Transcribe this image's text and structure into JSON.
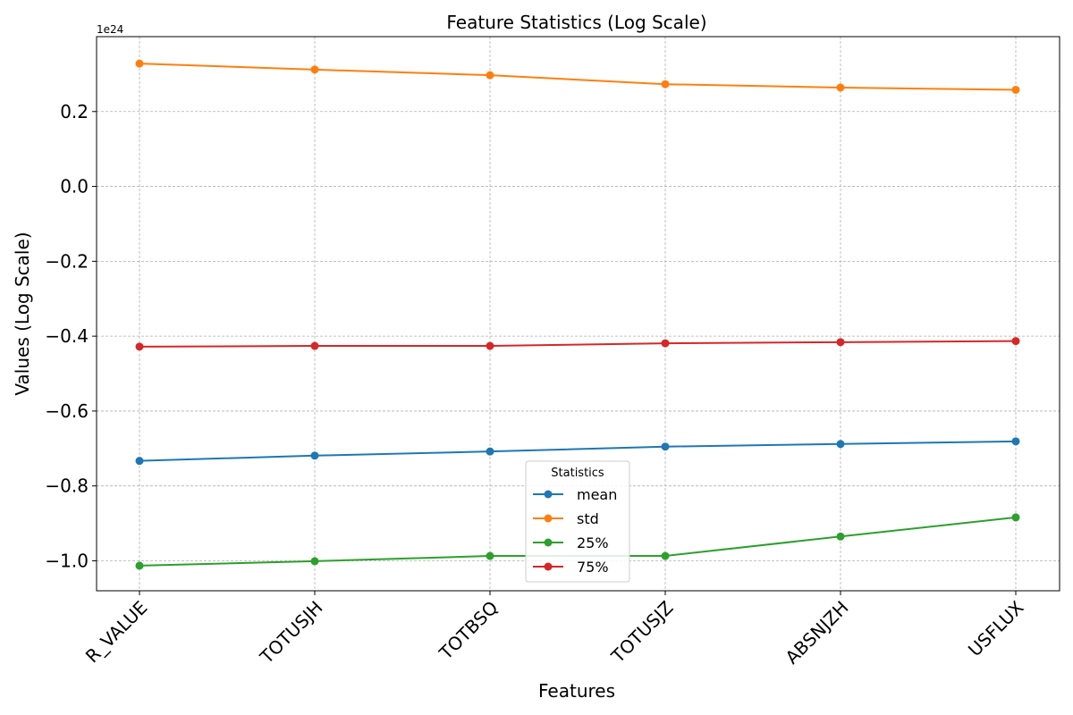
{
  "chart_data": {
    "type": "line",
    "title": "Feature Statistics (Log Scale)",
    "xlabel": "Features",
    "ylabel": "Values (Log Scale)",
    "y_offset_text": "1e24",
    "categories": [
      "R_VALUE",
      "TOTUSJH",
      "TOTBSQ",
      "TOTUSJZ",
      "ABSNJZH",
      "USFLUX"
    ],
    "ylim": [
      -1.08,
      0.4
    ],
    "yticks": [
      -1.0,
      -0.8,
      -0.6,
      -0.4,
      -0.2,
      0.0,
      0.2
    ],
    "ytick_labels": [
      "−1.0",
      "−0.8",
      "−0.6",
      "−0.4",
      "−0.2",
      "0.0",
      "0.2"
    ],
    "grid": true,
    "legend": {
      "title": "Statistics",
      "placement": "lower-center"
    },
    "series": [
      {
        "name": "mean",
        "color": "#1f77b4",
        "values": [
          -0.733,
          -0.719,
          -0.708,
          -0.695,
          -0.688,
          -0.681
        ]
      },
      {
        "name": "std",
        "color": "#ff7f0e",
        "values": [
          0.328,
          0.312,
          0.297,
          0.273,
          0.264,
          0.258
        ]
      },
      {
        "name": "25%",
        "color": "#2ca02c",
        "values": [
          -1.013,
          -1.001,
          -0.987,
          -0.987,
          -0.935,
          -0.884
        ]
      },
      {
        "name": "75%",
        "color": "#d62728",
        "values": [
          -0.428,
          -0.426,
          -0.426,
          -0.419,
          -0.416,
          -0.413
        ]
      }
    ]
  }
}
